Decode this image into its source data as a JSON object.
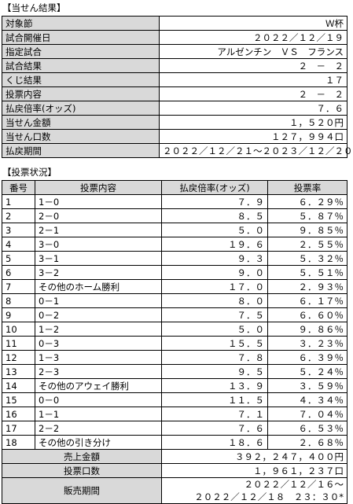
{
  "result": {
    "title": "【当せん結果】",
    "rows": [
      [
        "対象節",
        "Ｗ杯"
      ],
      [
        "試合開催日",
        "２０２２／１２／１９"
      ],
      [
        "指定試合",
        "アルゼンチン　ＶＳ　フランス"
      ],
      [
        "試合結果",
        "２　－　２"
      ],
      [
        "くじ結果",
        "１７"
      ],
      [
        "投票内容",
        "２　－　２"
      ],
      [
        "払戻倍率(オッズ)",
        "７．６"
      ],
      [
        "当せん金額",
        "１，５２０円"
      ],
      [
        "当せん口数",
        "１２７，９９４口"
      ],
      [
        "払戻期間",
        "２０２２／１２／２１～２０２３／１２／２０"
      ]
    ]
  },
  "status": {
    "title": "【投票状況】",
    "header": [
      "番号",
      "投票内容",
      "払戻倍率(オッズ)",
      "投票率"
    ],
    "rows": [
      [
        "1",
        "1－0",
        "７．９",
        "６．２９％"
      ],
      [
        "2",
        "2－0",
        "８．５",
        "５．８７％"
      ],
      [
        "3",
        "2－1",
        "５．０",
        "９．８５％"
      ],
      [
        "4",
        "3－0",
        "１９．６",
        "２．５５％"
      ],
      [
        "5",
        "3－1",
        "９．３",
        "５．３２％"
      ],
      [
        "6",
        "3－2",
        "９．０",
        "５．５１％"
      ],
      [
        "7",
        "その他のホーム勝利",
        "１７．０",
        "２．９３％"
      ],
      [
        "8",
        "0－1",
        "８．０",
        "６．１７％"
      ],
      [
        "9",
        "0－2",
        "７．５",
        "６．６０％"
      ],
      [
        "10",
        "1－2",
        "５．０",
        "９．８６％"
      ],
      [
        "11",
        "0－3",
        "１５．５",
        "３．２３％"
      ],
      [
        "12",
        "1－3",
        "７．８",
        "６．３９％"
      ],
      [
        "13",
        "2－3",
        "９．５",
        "５．２４％"
      ],
      [
        "14",
        "その他のアウェイ勝利",
        "１３．９",
        "３．５９％"
      ],
      [
        "15",
        "0－0",
        "１１．５",
        "４．３４％"
      ],
      [
        "16",
        "1－1",
        "７．１",
        "７．０４％"
      ],
      [
        "17",
        "2－2",
        "７．６",
        "６．５３％"
      ],
      [
        "18",
        "その他の引き分け",
        "１８．６",
        "２．６８％"
      ]
    ],
    "footer": [
      [
        "売上金額",
        "３９２，２４７，４００円"
      ],
      [
        "投票口数",
        "１，９６１，２３７口"
      ],
      [
        "販売期間",
        "２０２２／１２／１６～",
        "２０２２／１２／１８　２３：３０*"
      ]
    ]
  }
}
